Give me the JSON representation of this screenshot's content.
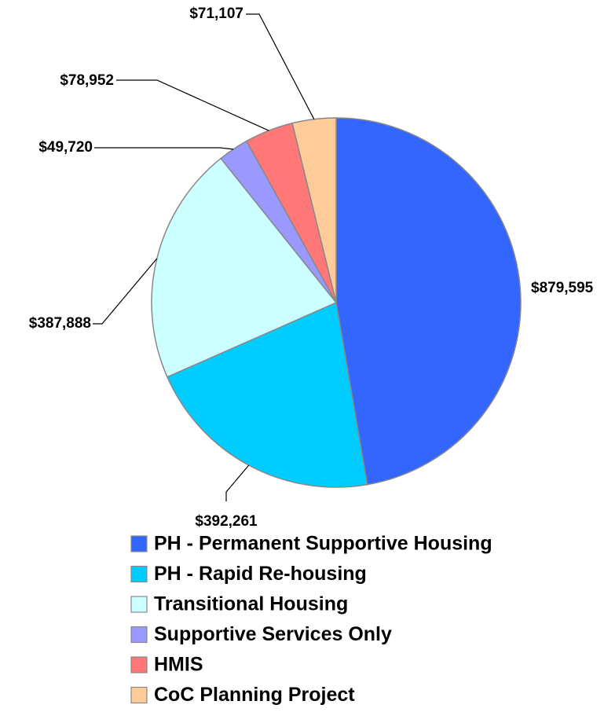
{
  "chart_data": {
    "type": "pie",
    "categories": [
      "PH - Permanent Supportive Housing",
      "PH - Rapid Re-housing",
      "Transitional Housing",
      "Supportive Services Only",
      "HMIS",
      "CoC Planning Project"
    ],
    "values": [
      879595,
      392261,
      387888,
      49720,
      78952,
      71107
    ],
    "value_labels": [
      "$879,595",
      "$392,261",
      "$387,888",
      "$49,720",
      "$78,952",
      "$71,107"
    ],
    "colors": [
      "#3366ff",
      "#00ccff",
      "#ccffff",
      "#9999ff",
      "#ff7777",
      "#ffcc99"
    ],
    "legend": "bottom"
  }
}
